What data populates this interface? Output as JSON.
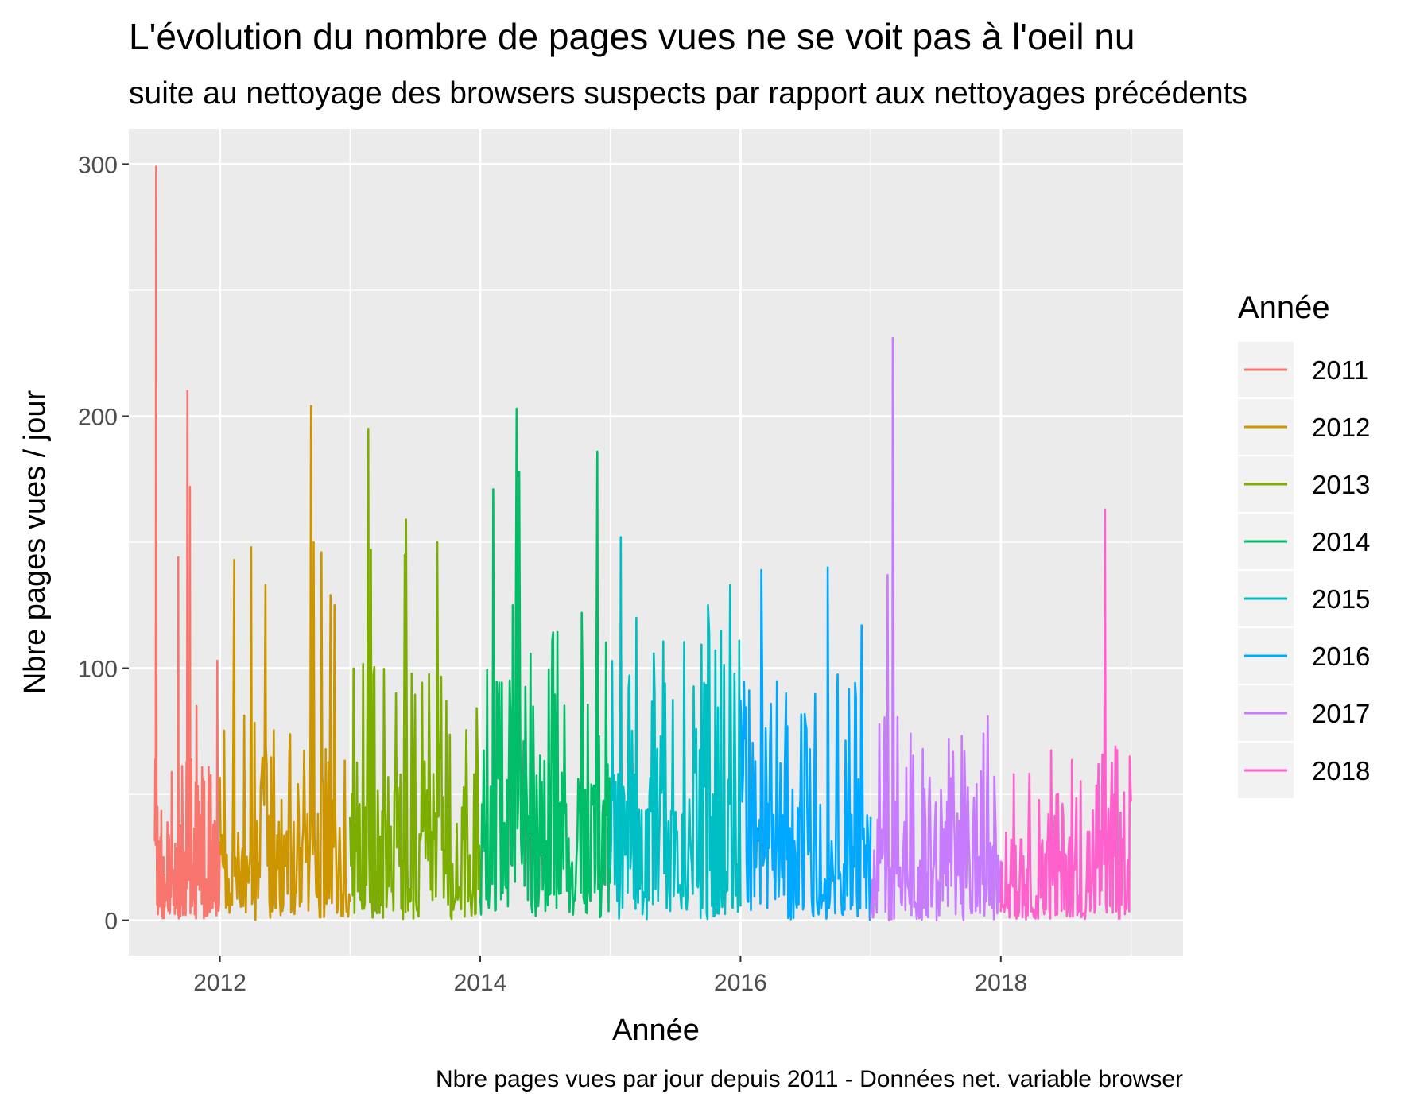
{
  "chart_data": {
    "type": "line",
    "title": "L'évolution du nombre de pages vues ne se voit pas à l'oeil nu",
    "subtitle": "suite au nettoyage des browsers suspects par rapport aux nettoyages précédents",
    "xlabel": "Année",
    "ylabel": "Nbre pages vues / jour",
    "caption": "Nbre pages vues par jour depuis 2011 - Données net. variable browser",
    "xlim": [
      2011.3,
      2019.4
    ],
    "ylim": [
      -14,
      314
    ],
    "x_ticks": [
      2012,
      2014,
      2016,
      2018
    ],
    "y_ticks": [
      0,
      100,
      200,
      300
    ],
    "grid": true,
    "legend": {
      "title": "Année",
      "position": "right"
    },
    "series": [
      {
        "name": "2011",
        "color": "#F8766D",
        "start": 2011.5,
        "end": 2012.0,
        "base": 12,
        "noise": 22,
        "peaks": [
          [
            2011.51,
            299
          ],
          [
            2011.75,
            210
          ],
          [
            2011.77,
            172
          ],
          [
            2011.68,
            144
          ],
          [
            2011.82,
            85
          ],
          [
            2011.98,
            103
          ]
        ]
      },
      {
        "name": "2012",
        "color": "#CD9600",
        "start": 2012.0,
        "end": 2013.0,
        "base": 14,
        "noise": 30,
        "peaks": [
          [
            2012.7,
            204
          ],
          [
            2012.24,
            148
          ],
          [
            2012.11,
            143
          ],
          [
            2012.72,
            150
          ],
          [
            2012.78,
            146
          ],
          [
            2012.35,
            133
          ],
          [
            2012.88,
            125
          ],
          [
            2012.85,
            129
          ]
        ]
      },
      {
        "name": "2013",
        "color": "#7CAE00",
        "start": 2013.0,
        "end": 2014.0,
        "base": 18,
        "noise": 35,
        "peaks": [
          [
            2013.14,
            195
          ],
          [
            2013.43,
            159
          ],
          [
            2013.67,
            150
          ],
          [
            2013.16,
            147
          ],
          [
            2013.42,
            145
          ]
        ]
      },
      {
        "name": "2014",
        "color": "#00BE67",
        "start": 2014.0,
        "end": 2015.0,
        "base": 20,
        "noise": 40,
        "peaks": [
          [
            2014.28,
            203
          ],
          [
            2014.9,
            186
          ],
          [
            2014.3,
            178
          ],
          [
            2014.1,
            171
          ],
          [
            2014.25,
            125
          ],
          [
            2014.78,
            122
          ]
        ]
      },
      {
        "name": "2015",
        "color": "#00BFC4",
        "start": 2015.0,
        "end": 2016.0,
        "base": 18,
        "noise": 40,
        "peaks": [
          [
            2015.08,
            152
          ],
          [
            2015.75,
            125
          ],
          [
            2015.92,
            133
          ],
          [
            2015.2,
            120
          ],
          [
            2015.85,
            115
          ],
          [
            2015.99,
            111
          ]
        ]
      },
      {
        "name": "2016",
        "color": "#00A9FF",
        "start": 2016.0,
        "end": 2017.0,
        "base": 15,
        "noise": 35,
        "peaks": [
          [
            2016.67,
            140
          ],
          [
            2016.16,
            139
          ],
          [
            2016.93,
            117
          ],
          [
            2016.35,
            90
          ],
          [
            2016.5,
            78
          ]
        ]
      },
      {
        "name": "2017",
        "color": "#C77CFF",
        "start": 2017.0,
        "end": 2018.0,
        "base": 10,
        "noise": 30,
        "peaks": [
          [
            2017.17,
            231
          ],
          [
            2017.13,
            137
          ],
          [
            2017.4,
            68
          ],
          [
            2017.6,
            72
          ],
          [
            2017.72,
            67
          ],
          [
            2017.95,
            57
          ]
        ]
      },
      {
        "name": "2018",
        "color": "#FF61CC",
        "start": 2018.0,
        "end": 2019.0,
        "base": 8,
        "noise": 25,
        "peaks": [
          [
            2018.8,
            163
          ],
          [
            2018.88,
            69
          ],
          [
            2018.99,
            65
          ],
          [
            2018.75,
            62
          ],
          [
            2018.1,
            58
          ]
        ]
      }
    ]
  }
}
